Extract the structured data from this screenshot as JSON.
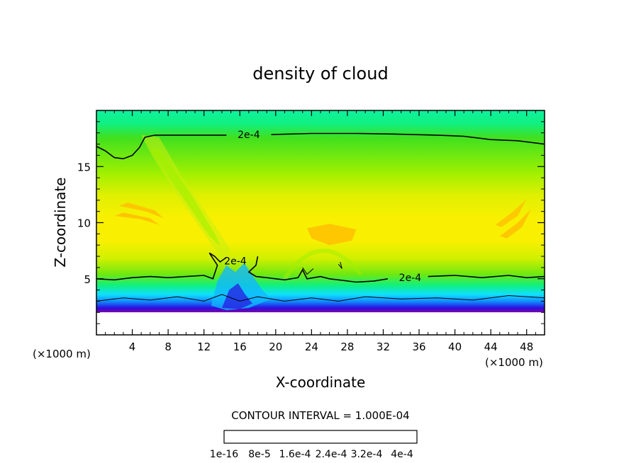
{
  "chart_data": {
    "type": "heatmap",
    "title": "density of cloud",
    "xlabel": "X-coordinate",
    "ylabel": "Z-coordinate",
    "x_unit_left": "(×1000 m)",
    "x_unit_right": "(×1000 m)",
    "xlim": [
      0,
      50
    ],
    "ylim": [
      0,
      20
    ],
    "x_ticks": [
      4,
      8,
      12,
      16,
      20,
      24,
      28,
      32,
      36,
      40,
      44,
      48
    ],
    "y_ticks": [
      5,
      10,
      15
    ],
    "contour_interval_text": "CONTOUR INTERVAL = 1.000E-04",
    "contour_labels": [
      "2e-4",
      "2e-4",
      "2e-4"
    ],
    "colorbar": {
      "range": [
        1e-16,
        0.0004
      ],
      "tick_labels": [
        "1e-16",
        "8e-5",
        "1.6e-4",
        "2.4e-4",
        "3.2e-4",
        "4e-4"
      ],
      "colors": [
        "#7a00a8",
        "#5a00c8",
        "#2a10e0",
        "#1038f0",
        "#1060f8",
        "#1090ff",
        "#10b8ff",
        "#10e0ff",
        "#10f8e0",
        "#10f8b0",
        "#10f080",
        "#20e850",
        "#40e020",
        "#70e810",
        "#a0f000",
        "#d0f000",
        "#f8f000",
        "#ffd800",
        "#ffb000",
        "#ff8800",
        "#ff6000",
        "#ff3820",
        "#ff5060",
        "#ff7888",
        "#ff98a0"
      ]
    }
  }
}
